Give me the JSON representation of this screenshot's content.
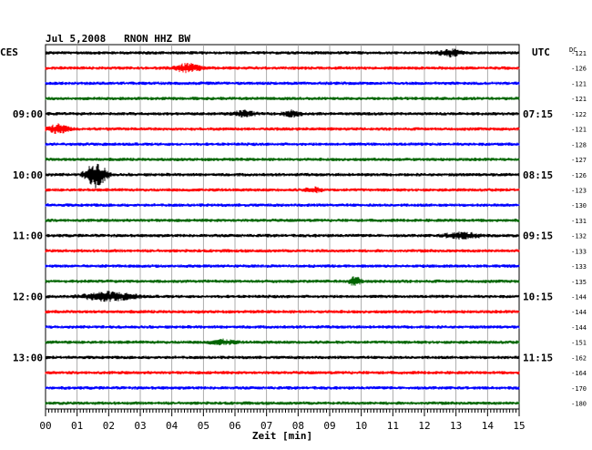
{
  "header": {
    "title": "Jul 5,2008   RNON HHZ BW",
    "left_label": "CES",
    "right_label": "UTC",
    "dc_label": "DC"
  },
  "chart_data": {
    "type": "line",
    "title": "Jul 5,2008   RNON HHZ BW",
    "xlabel": "Zeit [min]",
    "ylabel": "",
    "x_ticks": [
      "00",
      "01",
      "02",
      "03",
      "04",
      "05",
      "06",
      "07",
      "08",
      "09",
      "10",
      "11",
      "12",
      "13",
      "14",
      "15"
    ],
    "xlim": [
      0,
      15
    ],
    "grid": true,
    "row_colors": [
      "#000000",
      "#ff0000",
      "#0000ff",
      "#006400"
    ],
    "left_time_labels": [
      {
        "row": 4,
        "label": "09:00"
      },
      {
        "row": 8,
        "label": "10:00"
      },
      {
        "row": 12,
        "label": "11:00"
      },
      {
        "row": 16,
        "label": "12:00"
      },
      {
        "row": 20,
        "label": "13:00"
      }
    ],
    "right_time_labels": [
      {
        "row": 4,
        "label": "07:15"
      },
      {
        "row": 8,
        "label": "08:15"
      },
      {
        "row": 12,
        "label": "09:15"
      },
      {
        "row": 16,
        "label": "10:15"
      },
      {
        "row": 20,
        "label": "11:15"
      }
    ],
    "dc_values": [
      "-121",
      "-126",
      "-121",
      "-121",
      "-122",
      "-121",
      "-128",
      "-127",
      "-126",
      "-123",
      "-130",
      "-131",
      "-132",
      "-133",
      "-133",
      "-135",
      "-144",
      "-144",
      "-144",
      "-151",
      "-162",
      "-164",
      "-170",
      "-180"
    ],
    "events": [
      {
        "row": 0,
        "minute": 12.8,
        "width": 0.5,
        "amp": 2.5
      },
      {
        "row": 1,
        "minute": 4.5,
        "width": 0.6,
        "amp": 3
      },
      {
        "row": 4,
        "minute": 6.3,
        "width": 0.5,
        "amp": 2
      },
      {
        "row": 4,
        "minute": 7.8,
        "width": 0.4,
        "amp": 2
      },
      {
        "row": 5,
        "minute": 0.4,
        "width": 0.5,
        "amp": 3
      },
      {
        "row": 8,
        "minute": 1.6,
        "width": 0.5,
        "amp": 9
      },
      {
        "row": 9,
        "minute": 8.5,
        "width": 0.4,
        "amp": 1.5
      },
      {
        "row": 12,
        "minute": 13.2,
        "width": 0.8,
        "amp": 2
      },
      {
        "row": 15,
        "minute": 9.8,
        "width": 0.3,
        "amp": 3
      },
      {
        "row": 16,
        "minute": 2.0,
        "width": 1.2,
        "amp": 3
      },
      {
        "row": 19,
        "minute": 5.6,
        "width": 0.6,
        "amp": 1.5
      }
    ]
  }
}
